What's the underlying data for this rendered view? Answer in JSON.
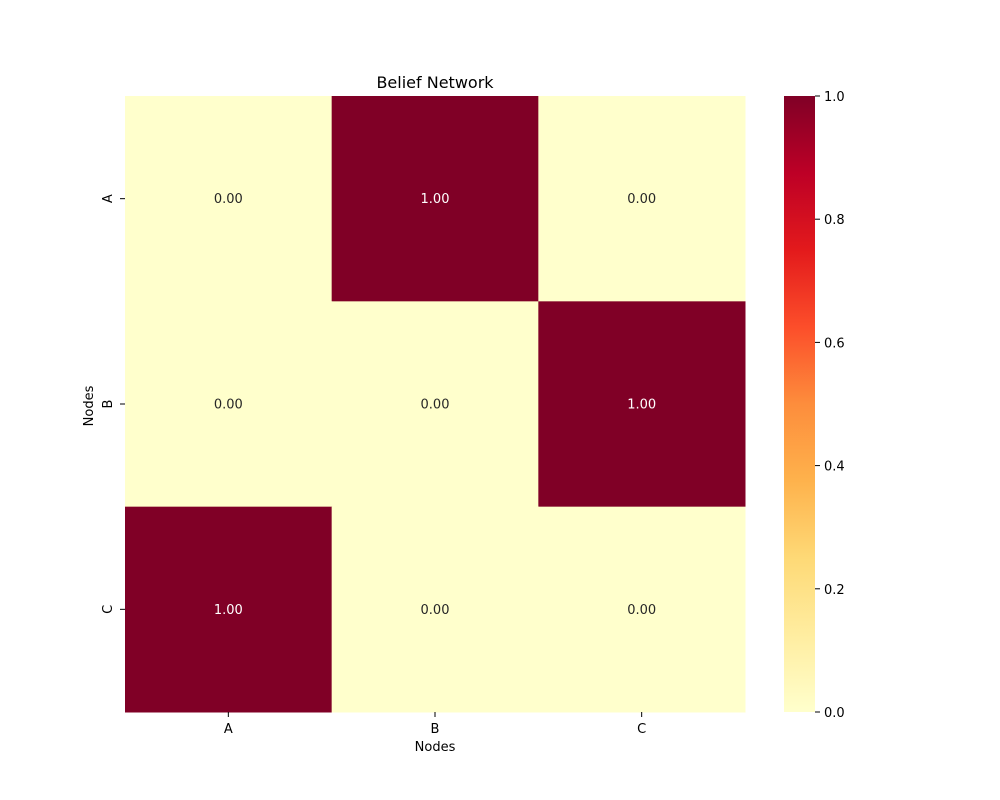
{
  "chart_data": {
    "type": "heatmap",
    "title": "Belief Network",
    "xlabel": "Nodes",
    "ylabel": "Nodes",
    "x_categories": [
      "A",
      "B",
      "C"
    ],
    "y_categories": [
      "A",
      "B",
      "C"
    ],
    "values": [
      [
        0.0,
        1.0,
        0.0
      ],
      [
        0.0,
        0.0,
        1.0
      ],
      [
        1.0,
        0.0,
        0.0
      ]
    ],
    "annotation_format": "0.00",
    "colormap": "YlOrRd",
    "colormap_stops": [
      "#ffffcc",
      "#ffeda0",
      "#fed976",
      "#feb24c",
      "#fd8d3c",
      "#fc4e2a",
      "#e31a1c",
      "#bd0026",
      "#800026"
    ],
    "annotation_color_low": "#262626",
    "annotation_color_high": "#ffffff",
    "colorbar": {
      "range": [
        0.0,
        1.0
      ],
      "ticks": [
        "0.0",
        "0.2",
        "0.4",
        "0.6",
        "0.8",
        "1.0"
      ]
    }
  }
}
